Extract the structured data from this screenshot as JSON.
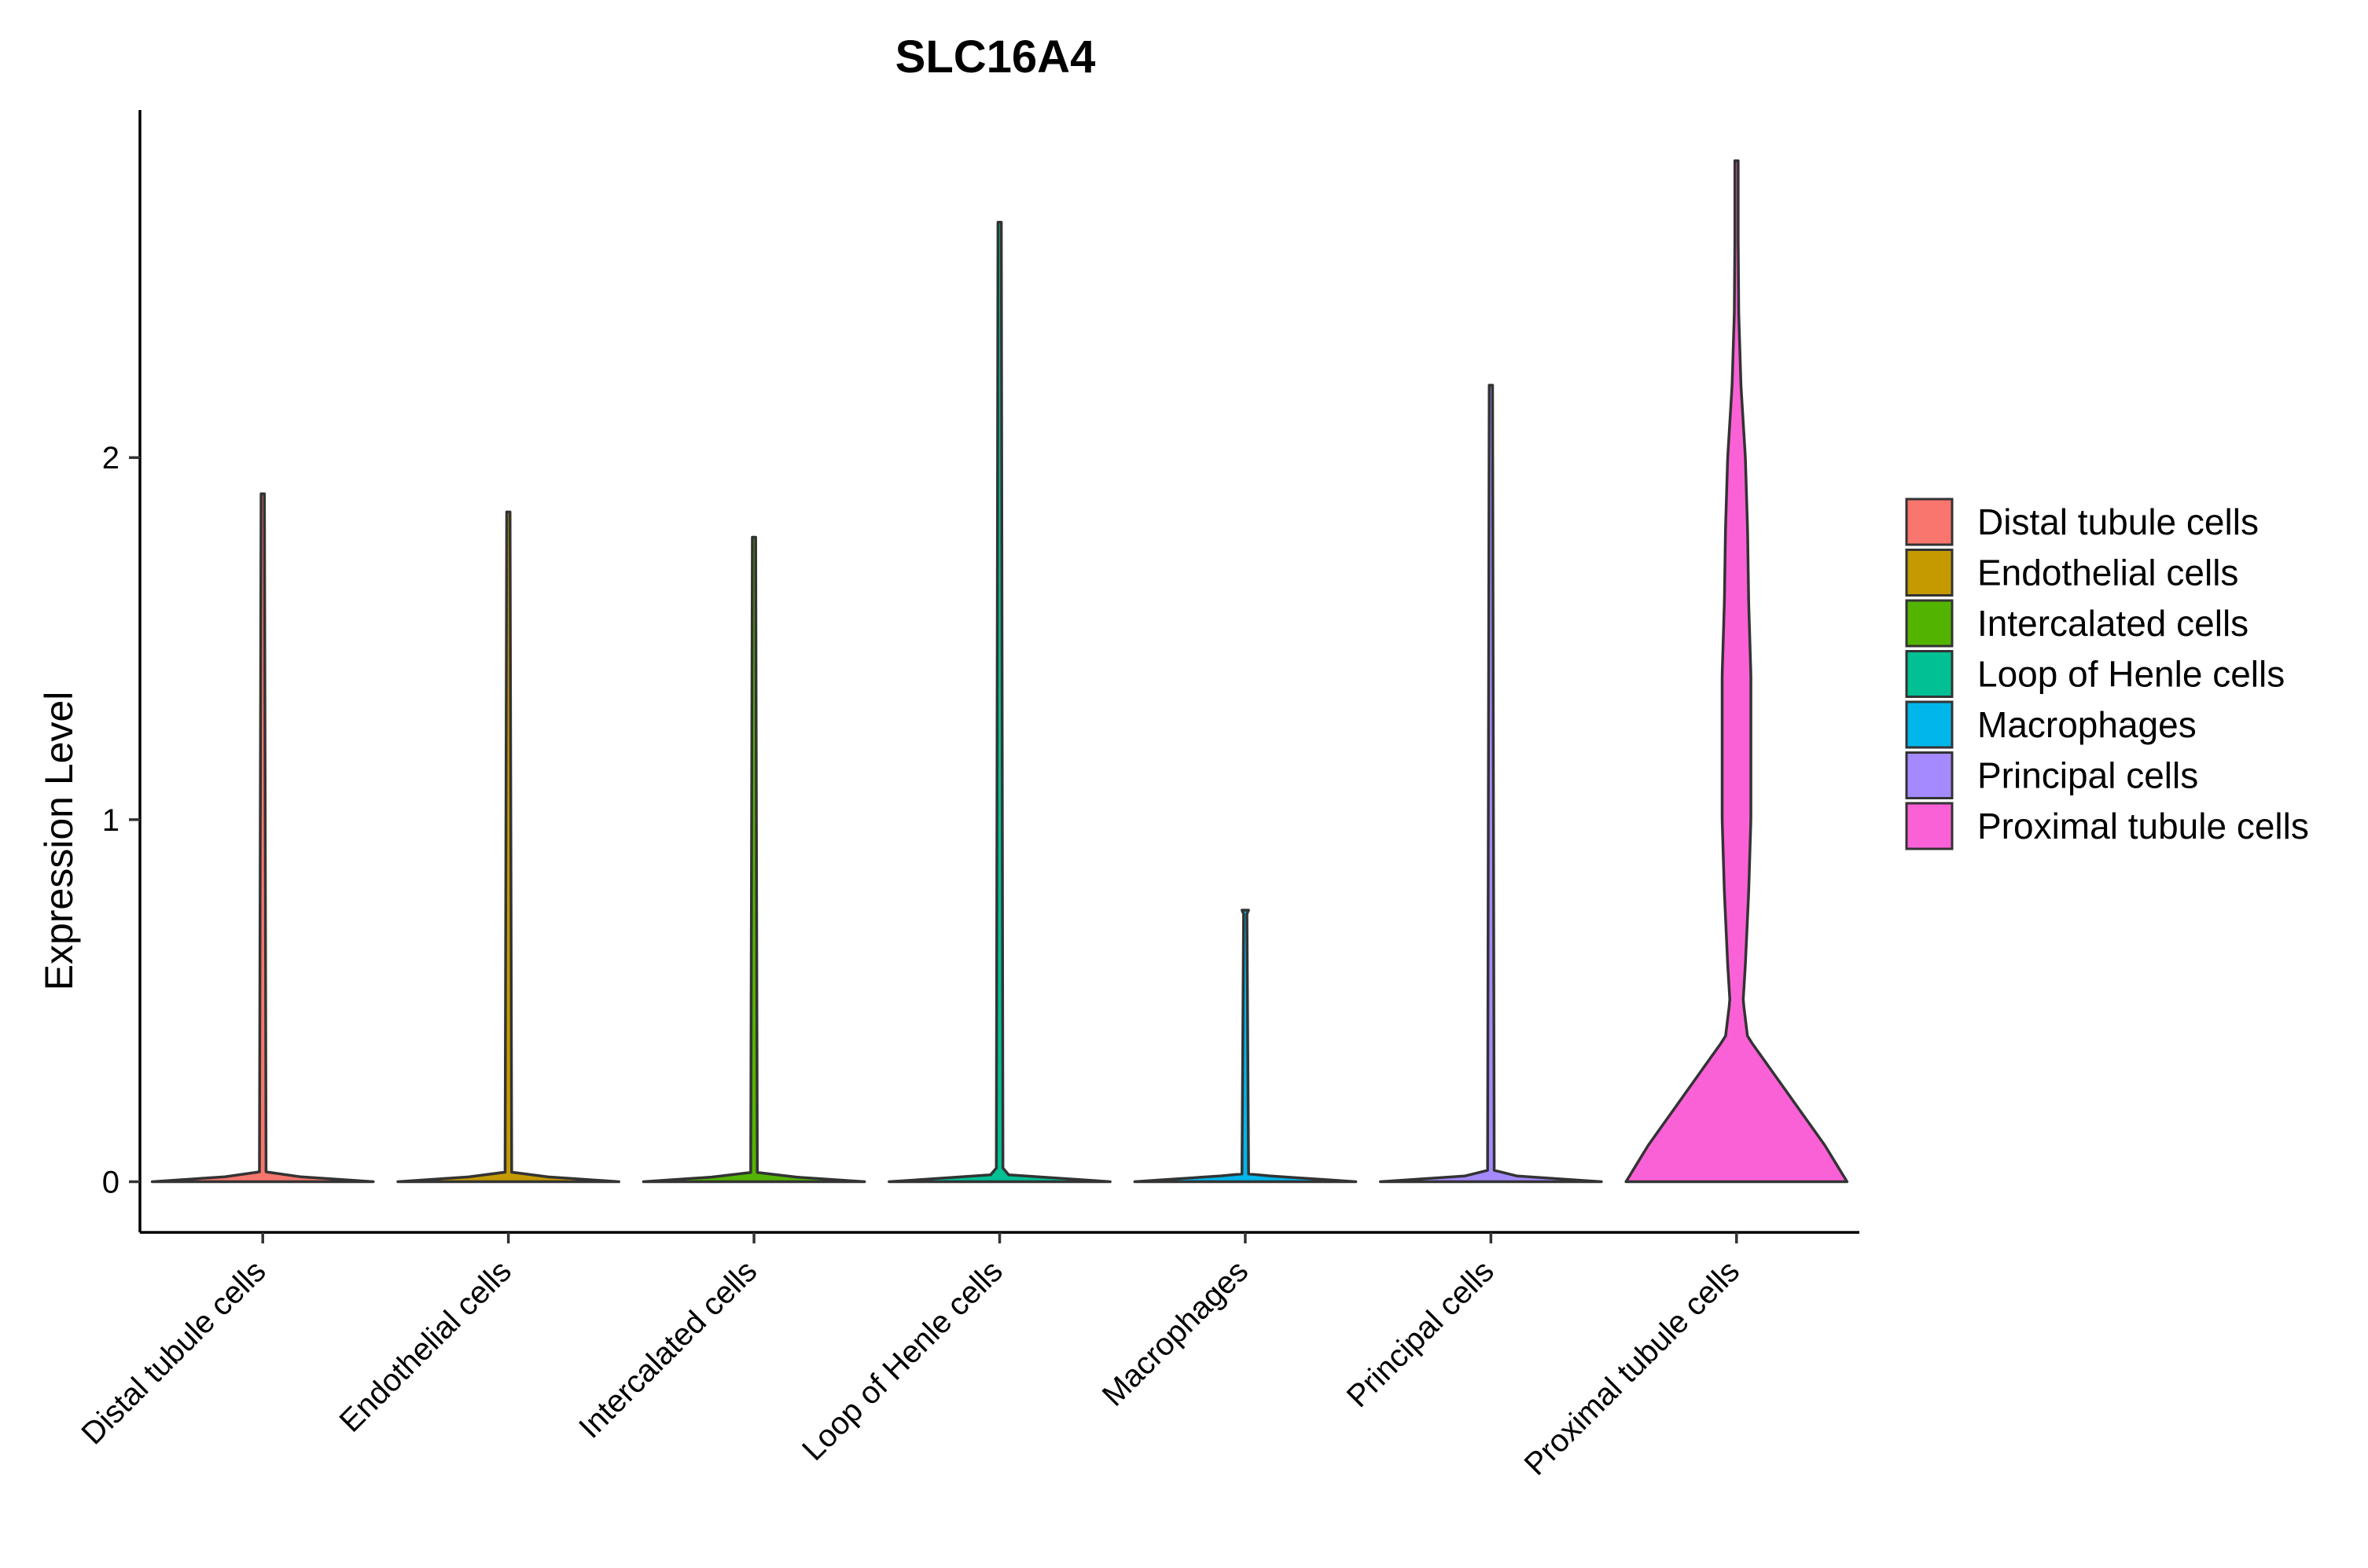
{
  "chart_data": {
    "type": "violin",
    "title": "SLC16A4",
    "xlabel": "",
    "ylabel": "Expression Level",
    "ylim": [
      -0.14,
      2.96
    ],
    "yticks": [
      0,
      1,
      2
    ],
    "grid": false,
    "legend_position": "right",
    "categories": [
      "Distal tubule cells",
      "Endothelial cells",
      "Intercalated cells",
      "Loop of Henle cells",
      "Macrophages",
      "Principal cells",
      "Proximal tubule cells"
    ],
    "series": [
      {
        "name": "Distal tubule cells",
        "color": "#F8766D",
        "max": 1.9,
        "density": [
          [
            0,
            1.0
          ],
          [
            0.02,
            0.03
          ],
          [
            1.9,
            0.015
          ]
        ]
      },
      {
        "name": "Endothelial cells",
        "color": "#C49A00",
        "max": 1.85,
        "density": [
          [
            0,
            1.0
          ],
          [
            0.02,
            0.03
          ],
          [
            1.85,
            0.015
          ]
        ]
      },
      {
        "name": "Intercalated cells",
        "color": "#53B400",
        "max": 1.78,
        "density": [
          [
            0,
            1.0
          ],
          [
            0.02,
            0.03
          ],
          [
            1.78,
            0.015
          ]
        ]
      },
      {
        "name": "Loop of Henle cells",
        "color": "#00C094",
        "max": 2.65,
        "density": [
          [
            0,
            1.0
          ],
          [
            0.02,
            0.03
          ],
          [
            2.65,
            0.015
          ]
        ]
      },
      {
        "name": "Macrophages",
        "color": "#00B6EB",
        "max": 0.75,
        "density": [
          [
            0,
            1.0
          ],
          [
            0.02,
            0.03
          ],
          [
            0.74,
            0.015
          ],
          [
            0.75,
            0.03
          ]
        ]
      },
      {
        "name": "Principal cells",
        "color": "#A58AFF",
        "max": 2.2,
        "density": [
          [
            0,
            1.0
          ],
          [
            0.02,
            0.03
          ],
          [
            2.2,
            0.015
          ]
        ]
      },
      {
        "name": "Proximal tubule cells",
        "color": "#FB61D7",
        "max": 2.82,
        "density": [
          [
            0,
            1.0
          ],
          [
            0.1,
            0.8
          ],
          [
            0.25,
            0.45
          ],
          [
            0.4,
            0.1
          ],
          [
            0.5,
            0.06
          ],
          [
            0.6,
            0.08
          ],
          [
            0.8,
            0.11
          ],
          [
            1.0,
            0.13
          ],
          [
            1.2,
            0.13
          ],
          [
            1.4,
            0.13
          ],
          [
            1.6,
            0.11
          ],
          [
            1.8,
            0.1
          ],
          [
            2.0,
            0.08
          ],
          [
            2.2,
            0.04
          ],
          [
            2.4,
            0.02
          ],
          [
            2.6,
            0.015
          ],
          [
            2.82,
            0.015
          ]
        ]
      }
    ]
  }
}
